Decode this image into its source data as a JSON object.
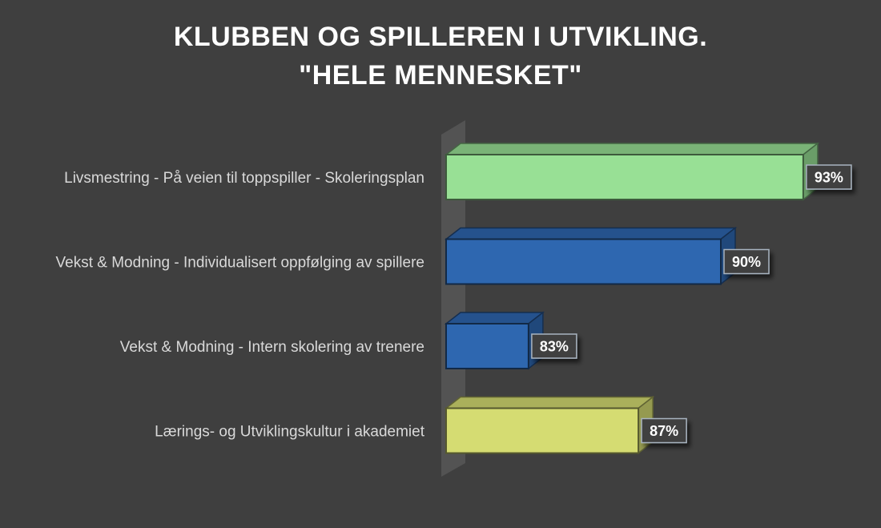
{
  "chart_data": {
    "type": "bar",
    "orientation": "horizontal",
    "style": "3d",
    "title_lines": [
      "KLUBBEN OG SPILLEREN I UTVIKLING.",
      "\"HELE MENNESKET\""
    ],
    "categories": [
      "Livsmestring - På veien til toppspiller - Skoleringsplan",
      "Vekst & Modning - Individualisert oppfølging av spillere",
      "Vekst & Modning - Intern skolering av trenere",
      "Lærings- og Utviklingskultur i akademiet"
    ],
    "values": [
      93,
      90,
      83,
      87
    ],
    "data_labels": [
      "93%",
      "90%",
      "83%",
      "87%"
    ],
    "bar_colors": [
      "#98e095",
      "#2e67b0",
      "#2e67b0",
      "#d5dc72"
    ],
    "xlim": [
      80,
      95
    ],
    "grid": false,
    "legend": "none"
  }
}
